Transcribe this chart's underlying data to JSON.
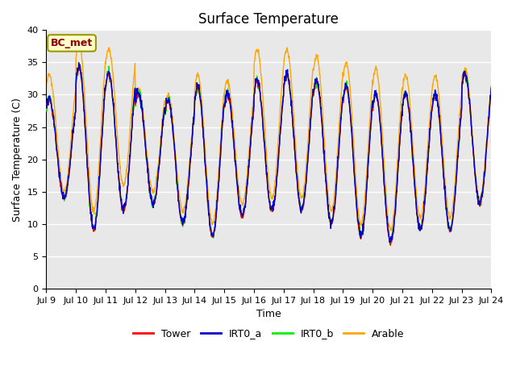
{
  "title": "Surface Temperature",
  "xlabel": "Time",
  "ylabel": "Surface Temperature (C)",
  "ylim": [
    0,
    40
  ],
  "yticks": [
    0,
    5,
    10,
    15,
    20,
    25,
    30,
    35,
    40
  ],
  "xticklabels": [
    "Jul 9",
    "Jul 10",
    "Jul 11",
    "Jul 12",
    "Jul 13",
    "Jul 14",
    "Jul 15",
    "Jul 16",
    "Jul 17",
    "Jul 18",
    "Jul 19",
    "Jul 20",
    "Jul 21",
    "Jul 22",
    "Jul 23",
    "Jul 24"
  ],
  "series_colors": {
    "Tower": "#ff0000",
    "IRT0_a": "#0000cc",
    "IRT0_b": "#00ee00",
    "Arable": "#ffa500"
  },
  "annotation_text": "BC_met",
  "annotation_color": "#8b0000",
  "annotation_bg": "#ffffcc",
  "annotation_border": "#999900",
  "background_color": "#e8e8e8",
  "figure_bg": "#ffffff",
  "title_fontsize": 12,
  "axis_label_fontsize": 9,
  "tick_fontsize": 8,
  "legend_fontsize": 9,
  "n_days": 15,
  "samples_per_day": 96,
  "day_mins": [
    14,
    9,
    12,
    13,
    10,
    8,
    11,
    12,
    12,
    10,
    8,
    7,
    9,
    9,
    13
  ],
  "day_maxes": [
    29,
    34,
    33,
    30,
    29,
    31,
    30,
    32,
    33,
    32,
    31,
    30,
    30,
    30,
    33
  ],
  "arable_extra_mins": [
    1,
    3,
    4,
    2,
    2,
    2,
    2,
    2,
    2,
    2,
    2,
    2,
    2,
    2,
    1
  ],
  "arable_extra_maxes": [
    4,
    4,
    4,
    1,
    1,
    2,
    2,
    5,
    4,
    4,
    4,
    4,
    3,
    3,
    1
  ],
  "grid_color": "#ffffff",
  "grid_linewidth": 1.0,
  "line_width": 1.0
}
